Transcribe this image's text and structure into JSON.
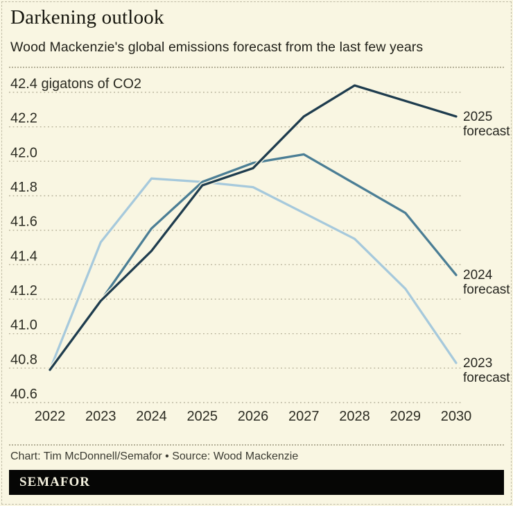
{
  "page": {
    "title": "Darkening outlook",
    "subtitle": "Wood Mackenzie's global emissions forecast from the last few years",
    "credit": "Chart: Tim McDonnell/Semafor • Source: Wood Mackenzie",
    "brand": "SEMAFOR",
    "background_color": "#f9f6e2",
    "brand_bar_color": "#060605"
  },
  "chart_data": {
    "type": "line",
    "title": "Darkening outlook",
    "subtitle": "Wood Mackenzie's global emissions forecast from the last few years",
    "x": [
      2022,
      2023,
      2024,
      2025,
      2026,
      2027,
      2028,
      2029,
      2030
    ],
    "x_tick_labels": [
      "2022",
      "2023",
      "2024",
      "2025",
      "2026",
      "2027",
      "2028",
      "2029",
      "2030"
    ],
    "xlim": [
      2022,
      2030
    ],
    "ylim": [
      40.6,
      42.4
    ],
    "y_tick_values": [
      42.4,
      42.2,
      42.0,
      41.8,
      41.6,
      41.4,
      41.2,
      41.0,
      40.8,
      40.6
    ],
    "y_tick_labels": [
      "42.4 gigatons of CO2",
      "42.2",
      "42.0",
      "41.8",
      "41.6",
      "41.4",
      "41.2",
      "41.0",
      "40.8",
      "40.6"
    ],
    "ylabel": "gigatons of CO2",
    "grid": "horizontal-dotted",
    "grid_color": "#b6b199",
    "legend_position": "right-of-line-ends",
    "series": [
      {
        "name": "2025 forecast",
        "label_lines": [
          "2025",
          "forecast"
        ],
        "color": "#1e3c4e",
        "values": [
          40.79,
          41.19,
          41.48,
          41.86,
          41.96,
          42.26,
          42.44,
          42.35,
          42.26
        ]
      },
      {
        "name": "2024 forecast",
        "label_lines": [
          "2024",
          "forecast"
        ],
        "color": "#4b7e95",
        "values": [
          40.79,
          41.19,
          41.61,
          41.88,
          41.99,
          42.04,
          41.87,
          41.7,
          41.34
        ]
      },
      {
        "name": "2023 forecast",
        "label_lines": [
          "2023",
          "forecast"
        ],
        "color": "#a6c9dc",
        "values": [
          40.79,
          41.53,
          41.9,
          41.88,
          41.85,
          41.7,
          41.55,
          41.26,
          40.83
        ]
      }
    ]
  }
}
